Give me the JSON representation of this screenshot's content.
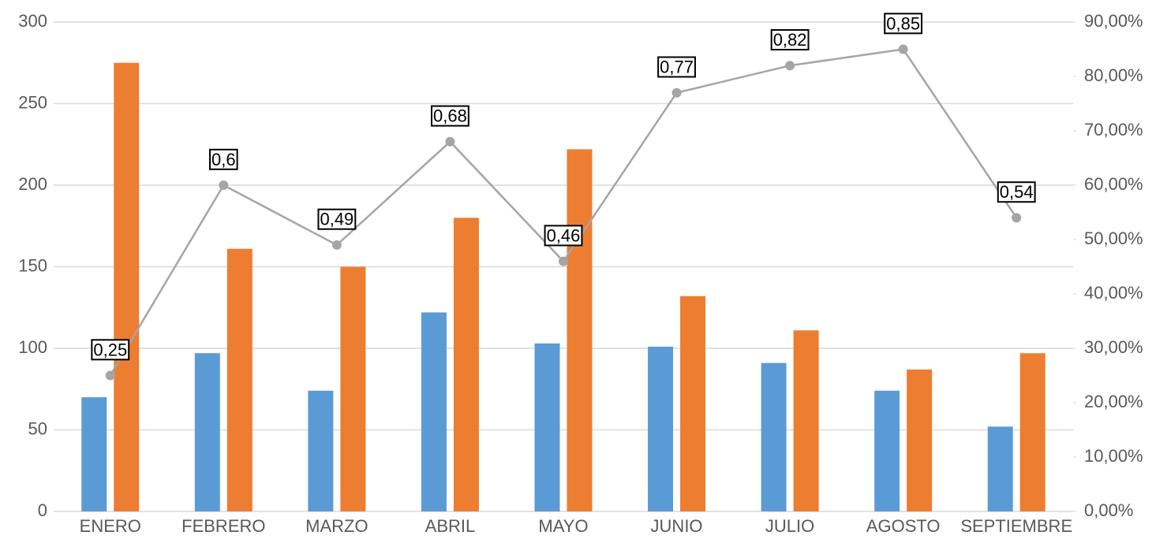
{
  "chart_data": {
    "type": "bar",
    "categories": [
      "ENERO",
      "FEBRERO",
      "MARZO",
      "ABRIL",
      "MAYO",
      "JUNIO",
      "JULIO",
      "AGOSTO",
      "SEPTIEMBRE"
    ],
    "series": [
      {
        "type": "bar",
        "color": "#5b9bd5",
        "values": [
          70,
          97,
          74,
          122,
          103,
          101,
          91,
          74,
          52
        ]
      },
      {
        "type": "bar",
        "color": "#ed7d31",
        "values": [
          275,
          161,
          150,
          180,
          222,
          132,
          111,
          87,
          97
        ]
      },
      {
        "type": "line",
        "axis": "y2",
        "color": "#a5a5a5",
        "values": [
          25,
          60,
          49,
          68,
          46,
          77,
          82,
          85,
          54
        ],
        "value_labels": [
          "0,25",
          "0,6",
          "0,49",
          "0,68",
          "0,46",
          "0,77",
          "0,82",
          "0,85",
          "0,54"
        ]
      }
    ],
    "ylim": [
      0,
      300
    ],
    "yticks": [
      0,
      50,
      100,
      150,
      200,
      250,
      300
    ],
    "y2lim": [
      0,
      90
    ],
    "y2ticks": [
      {
        "value": 0,
        "label": "0,00%"
      },
      {
        "value": 10,
        "label": "10,00%"
      },
      {
        "value": 20,
        "label": "20,00%"
      },
      {
        "value": 30,
        "label": "30,00%"
      },
      {
        "value": 40,
        "label": "40,00%"
      },
      {
        "value": 50,
        "label": "50,00%"
      },
      {
        "value": 60,
        "label": "60,00%"
      },
      {
        "value": 70,
        "label": "70,00%"
      },
      {
        "value": 80,
        "label": "80,00%"
      },
      {
        "value": 90,
        "label": "90,00%"
      }
    ],
    "grid": true
  }
}
